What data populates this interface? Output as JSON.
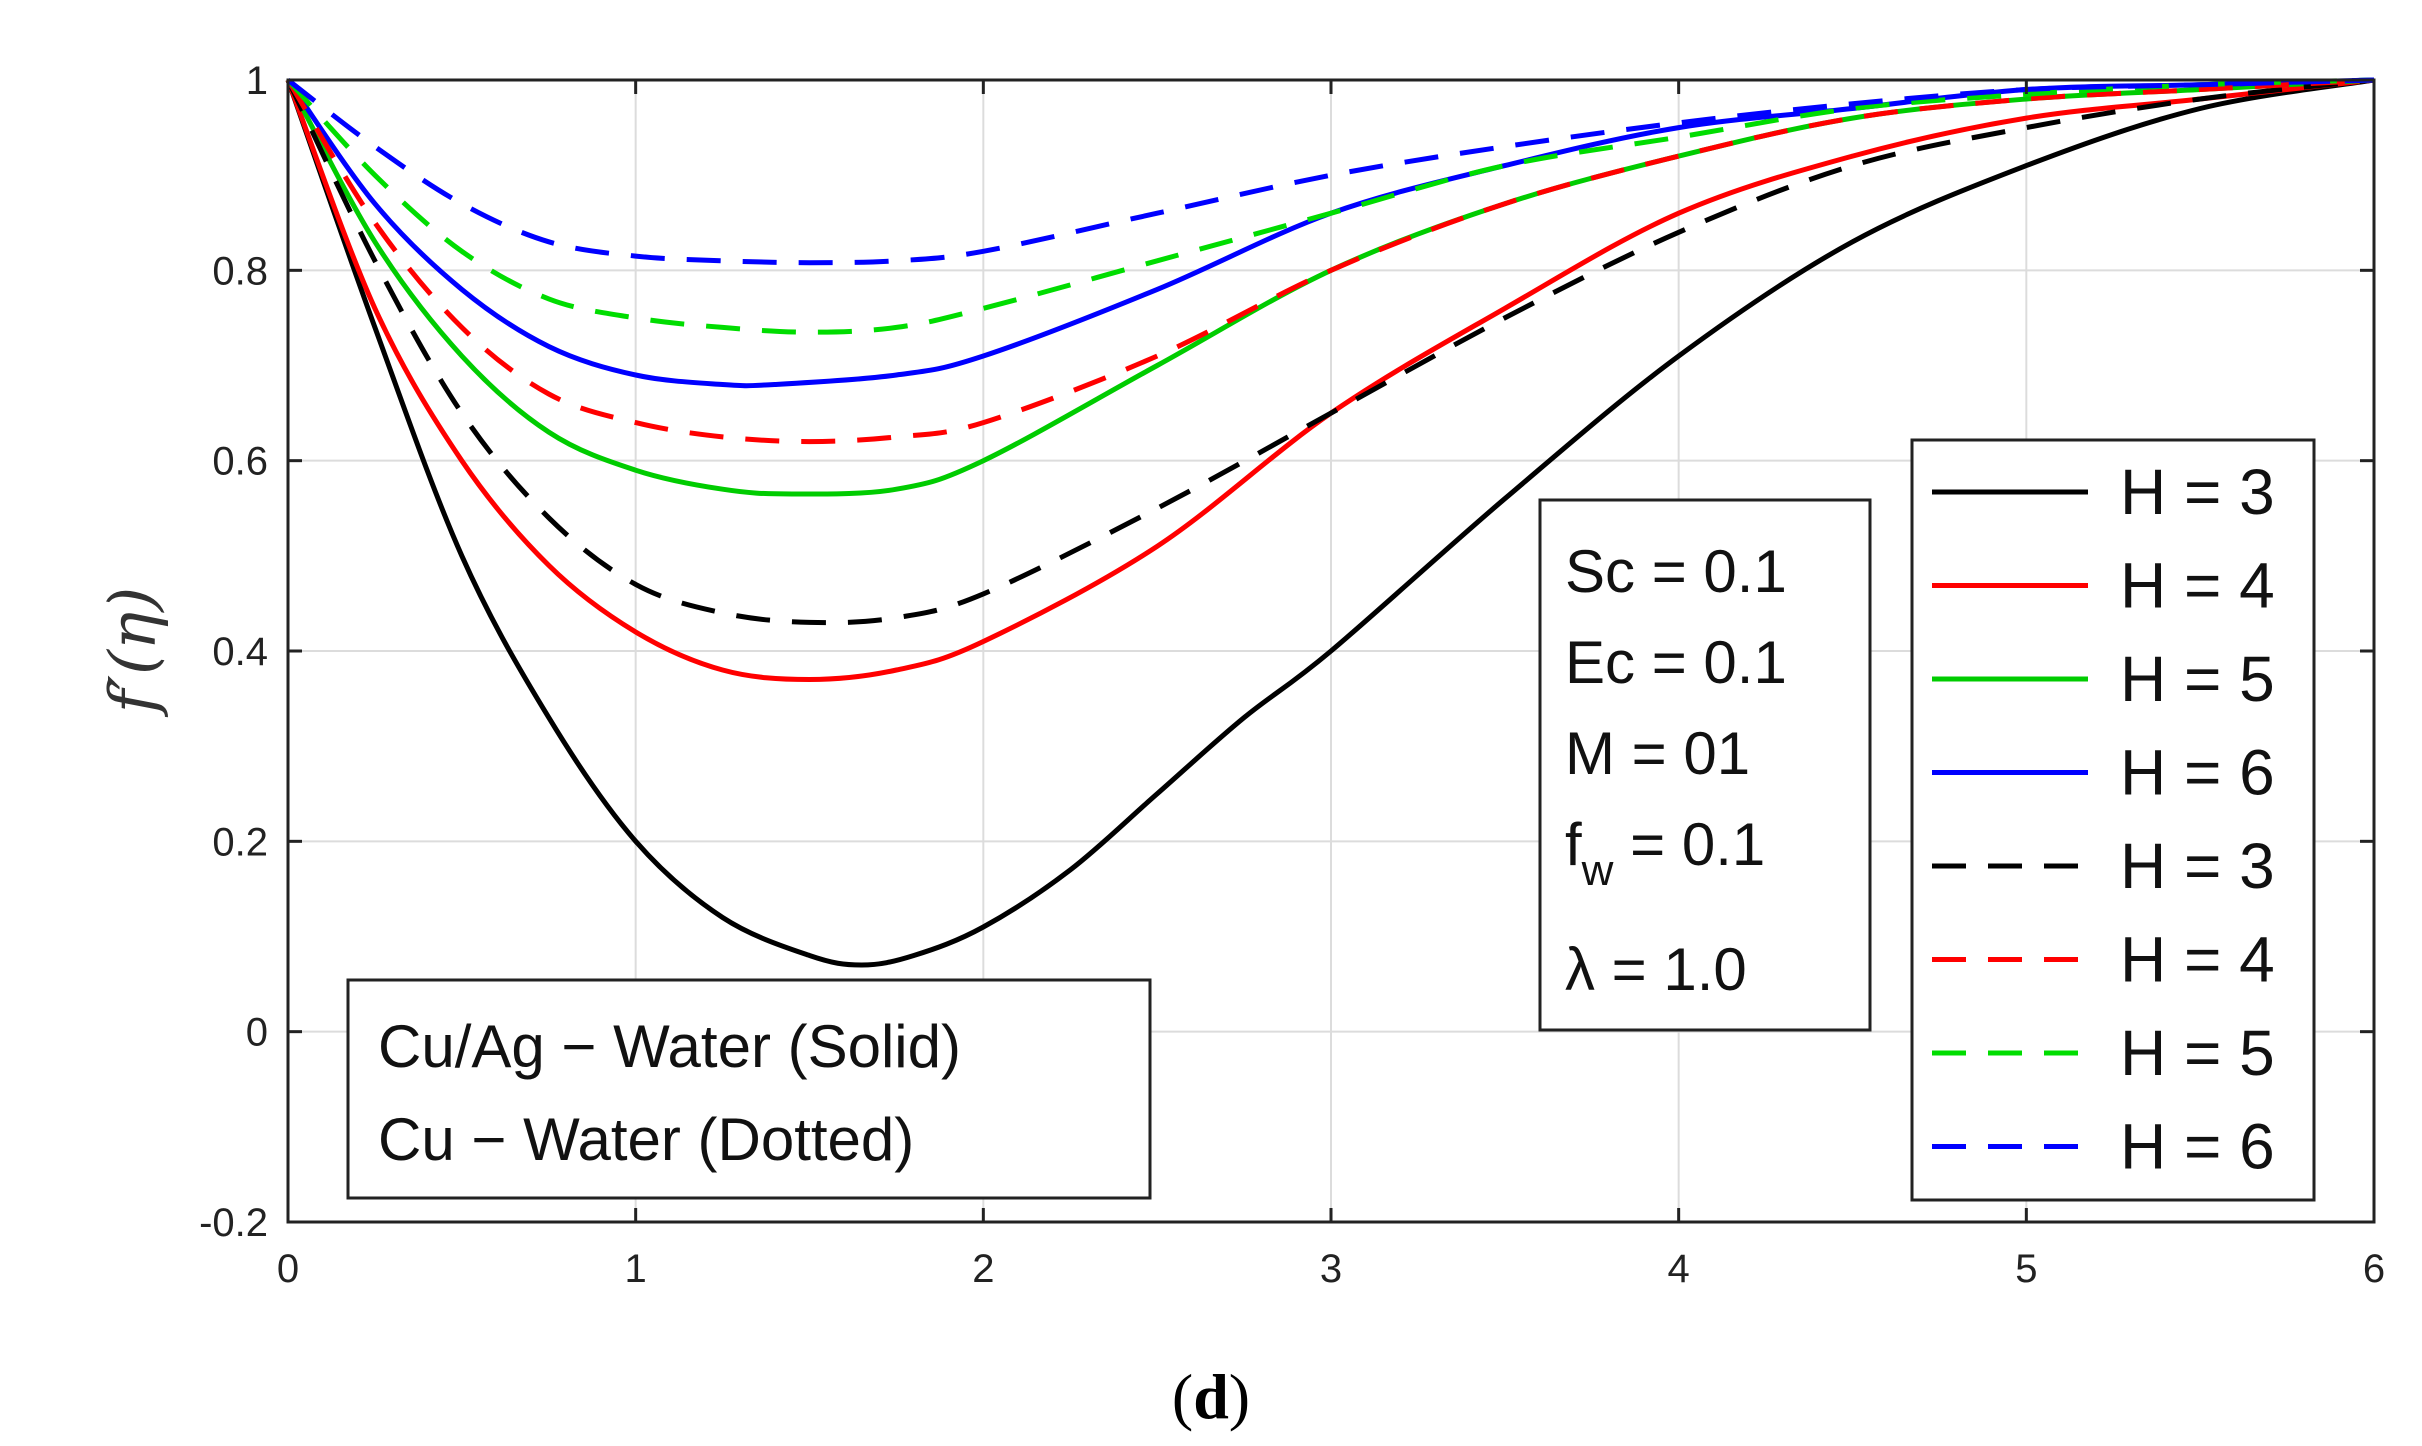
{
  "chart_data": {
    "type": "line",
    "title": "",
    "caption": {
      "open": "(",
      "letter": "d",
      "close": ")"
    },
    "xlabel": "",
    "ylabel": "f′(η)",
    "xlim": [
      0,
      6
    ],
    "ylim": [
      -0.2,
      1
    ],
    "xticks": [
      0,
      1,
      2,
      3,
      4,
      5,
      6
    ],
    "yticks": [
      -0.2,
      0,
      0.2,
      0.4,
      0.6,
      0.8,
      1
    ],
    "xtick_labels": [
      "0",
      "1",
      "2",
      "3",
      "4",
      "5",
      "6"
    ],
    "ytick_labels": [
      "-0.2",
      "0",
      "0.2",
      "0.4",
      "0.6",
      "0.8",
      "1"
    ],
    "grid": true,
    "legend_position": "right",
    "series": [
      {
        "name": "H = 3",
        "color": "#000000",
        "dash": "solid",
        "x": [
          0,
          0.25,
          0.5,
          0.75,
          1,
          1.25,
          1.5,
          1.65,
          1.8,
          2,
          2.25,
          2.5,
          2.75,
          3,
          3.5,
          4,
          4.5,
          5,
          5.5,
          6
        ],
        "y": [
          1,
          0.74,
          0.5,
          0.33,
          0.2,
          0.12,
          0.08,
          0.07,
          0.08,
          0.11,
          0.17,
          0.25,
          0.33,
          0.4,
          0.56,
          0.71,
          0.83,
          0.91,
          0.97,
          1
        ]
      },
      {
        "name": "H = 4",
        "color": "#ff0000",
        "dash": "solid",
        "x": [
          0,
          0.25,
          0.5,
          0.75,
          1,
          1.25,
          1.5,
          1.75,
          2,
          2.5,
          3,
          3.5,
          4,
          4.5,
          5,
          5.5,
          6
        ],
        "y": [
          1,
          0.76,
          0.6,
          0.49,
          0.42,
          0.38,
          0.37,
          0.38,
          0.41,
          0.51,
          0.65,
          0.76,
          0.86,
          0.92,
          0.96,
          0.98,
          1
        ]
      },
      {
        "name": "H = 5",
        "color": "#00cc00",
        "dash": "solid",
        "x": [
          0,
          0.25,
          0.5,
          0.75,
          1,
          1.25,
          1.45,
          1.75,
          2,
          2.5,
          3,
          3.5,
          4,
          4.5,
          5,
          5.5,
          6
        ],
        "y": [
          1,
          0.83,
          0.71,
          0.63,
          0.59,
          0.57,
          0.565,
          0.57,
          0.6,
          0.7,
          0.8,
          0.87,
          0.92,
          0.96,
          0.98,
          0.99,
          1
        ]
      },
      {
        "name": "H = 6",
        "color": "#0000ff",
        "dash": "solid",
        "x": [
          0,
          0.25,
          0.5,
          0.75,
          1,
          1.25,
          1.4,
          1.75,
          2,
          2.5,
          3,
          3.5,
          4,
          4.5,
          5,
          5.5,
          6
        ],
        "y": [
          1,
          0.87,
          0.78,
          0.72,
          0.69,
          0.68,
          0.68,
          0.69,
          0.71,
          0.78,
          0.86,
          0.91,
          0.95,
          0.97,
          0.99,
          0.995,
          1
        ]
      },
      {
        "name": "H = 3",
        "color": "#000000",
        "dash": "dashed",
        "x": [
          0,
          0.25,
          0.5,
          0.75,
          1,
          1.25,
          1.5,
          1.75,
          2,
          2.5,
          3,
          3.5,
          4,
          4.5,
          5,
          5.5,
          6
        ],
        "y": [
          1,
          0.81,
          0.65,
          0.54,
          0.47,
          0.44,
          0.43,
          0.435,
          0.46,
          0.55,
          0.65,
          0.75,
          0.84,
          0.91,
          0.95,
          0.98,
          1
        ]
      },
      {
        "name": "H = 4",
        "color": "#ff0000",
        "dash": "dashed",
        "x": [
          0,
          0.25,
          0.5,
          0.75,
          1,
          1.25,
          1.5,
          1.75,
          2,
          2.5,
          3,
          3.5,
          4,
          4.5,
          5,
          5.5,
          6
        ],
        "y": [
          1,
          0.85,
          0.74,
          0.67,
          0.64,
          0.625,
          0.62,
          0.625,
          0.64,
          0.71,
          0.8,
          0.87,
          0.92,
          0.96,
          0.98,
          0.99,
          1
        ]
      },
      {
        "name": "H = 5",
        "color": "#00dd00",
        "dash": "dashed",
        "x": [
          0,
          0.25,
          0.5,
          0.75,
          1,
          1.25,
          1.5,
          1.75,
          2,
          2.5,
          3,
          3.5,
          4,
          4.5,
          5,
          5.5,
          6
        ],
        "y": [
          1,
          0.9,
          0.82,
          0.77,
          0.75,
          0.74,
          0.735,
          0.74,
          0.76,
          0.81,
          0.86,
          0.91,
          0.94,
          0.97,
          0.985,
          0.995,
          1
        ]
      },
      {
        "name": "H = 6",
        "color": "#0000ff",
        "dash": "dashed",
        "x": [
          0,
          0.25,
          0.5,
          0.75,
          1,
          1.25,
          1.5,
          1.75,
          2,
          2.5,
          3,
          3.5,
          4,
          4.5,
          5,
          5.5,
          6
        ],
        "y": [
          1,
          0.93,
          0.87,
          0.83,
          0.815,
          0.81,
          0.808,
          0.81,
          0.82,
          0.86,
          0.9,
          0.93,
          0.955,
          0.975,
          0.99,
          0.995,
          1
        ]
      }
    ],
    "annotations": {
      "params": [
        {
          "main": "Sc = 0.1"
        },
        {
          "main": "Ec = 0.1"
        },
        {
          "main": "M = 01"
        },
        {
          "main": "f",
          "sub": "w",
          "rest": " = 0.1"
        },
        {
          "main": "λ = 1.0"
        }
      ],
      "fluids": [
        "Cu/Ag − Water (Solid)",
        "Cu − Water (Dotted)"
      ]
    }
  }
}
